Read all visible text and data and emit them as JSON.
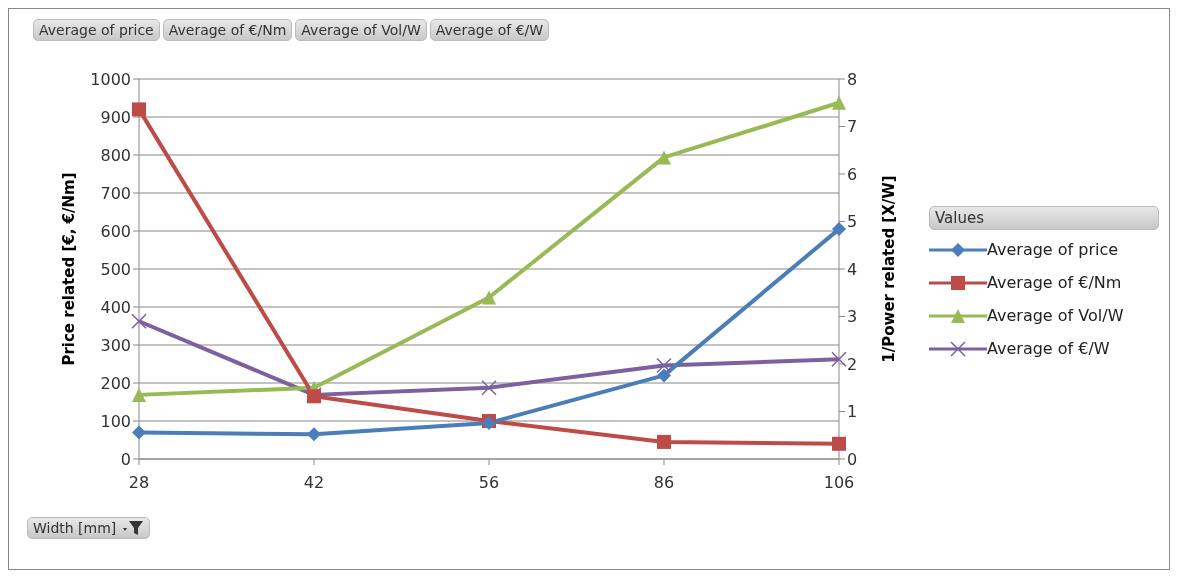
{
  "chart_data": {
    "type": "line",
    "xlabel": "Width [mm]",
    "ylabel": "Price related [€, €/Nm]",
    "y2label": "1/Power related [X/W]",
    "legend_title": "Values",
    "annotations": [
      "Average of price",
      "Average of €/Nm",
      "Average of Vol/W",
      "Average of €/W"
    ],
    "categories": [
      "28",
      "42",
      "56",
      "86",
      "106"
    ],
    "series": [
      {
        "name": "Average of price",
        "color": "#4a7ebb",
        "marker": "diamond",
        "values": [
          70,
          65,
          95,
          220,
          605
        ]
      },
      {
        "name": "Average of €/Nm",
        "color": "#be4b48",
        "marker": "square",
        "values": [
          920,
          165,
          100,
          45,
          40
        ]
      },
      {
        "name": "Average of Vol/W",
        "color": "#98b954",
        "marker": "triangle",
        "axis": "y2",
        "values": [
          1.35,
          1.5,
          3.4,
          6.35,
          7.5
        ]
      },
      {
        "name": "Average of €/W",
        "color": "#7d60a0",
        "marker": "cross",
        "axis": "y2",
        "values": [
          2.9,
          1.35,
          1.5,
          1.97,
          2.1
        ]
      }
    ],
    "ylim": [
      0,
      1000
    ],
    "yticks": [
      0,
      100,
      200,
      300,
      400,
      500,
      600,
      700,
      800,
      900,
      1000
    ],
    "y2lim": [
      0,
      8
    ],
    "y2ticks": [
      0,
      1,
      2,
      3,
      4,
      5,
      6,
      7,
      8
    ],
    "grid": "y",
    "legend": "right"
  }
}
